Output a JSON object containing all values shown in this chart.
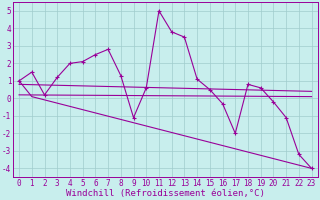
{
  "xlabel": "Windchill (Refroidissement éolien,°C)",
  "bg_color": "#c8eeed",
  "grid_color": "#a0cccc",
  "line_color": "#990099",
  "x_ticks": [
    0,
    1,
    2,
    3,
    4,
    5,
    6,
    7,
    8,
    9,
    10,
    11,
    12,
    13,
    14,
    15,
    16,
    17,
    18,
    19,
    20,
    21,
    22,
    23
  ],
  "ylim": [
    -4.5,
    5.5
  ],
  "xlim": [
    -0.5,
    23.5
  ],
  "series1_x": [
    0,
    1,
    2,
    3,
    4,
    5,
    6,
    7,
    8,
    9,
    10,
    11,
    12,
    13,
    14,
    15,
    16,
    17,
    18,
    19,
    20,
    21,
    22,
    23
  ],
  "series1_y": [
    1.0,
    1.5,
    0.2,
    1.2,
    2.0,
    2.1,
    2.5,
    2.8,
    1.3,
    -1.1,
    0.6,
    5.0,
    3.8,
    3.5,
    1.1,
    0.5,
    -0.3,
    -2.0,
    0.8,
    0.6,
    -0.2,
    -1.1,
    -3.2,
    -4.0
  ],
  "series2_x": [
    0,
    1,
    23
  ],
  "series2_y": [
    1.0,
    0.1,
    -4.0
  ],
  "series3_x": [
    0,
    23
  ],
  "series3_y": [
    0.8,
    0.4
  ],
  "series4_x": [
    0,
    23
  ],
  "series4_y": [
    0.2,
    0.1
  ],
  "yticks": [
    -4,
    -3,
    -2,
    -1,
    0,
    1,
    2,
    3,
    4,
    5
  ],
  "tick_fontsize": 5.5,
  "label_fontsize": 6.5
}
